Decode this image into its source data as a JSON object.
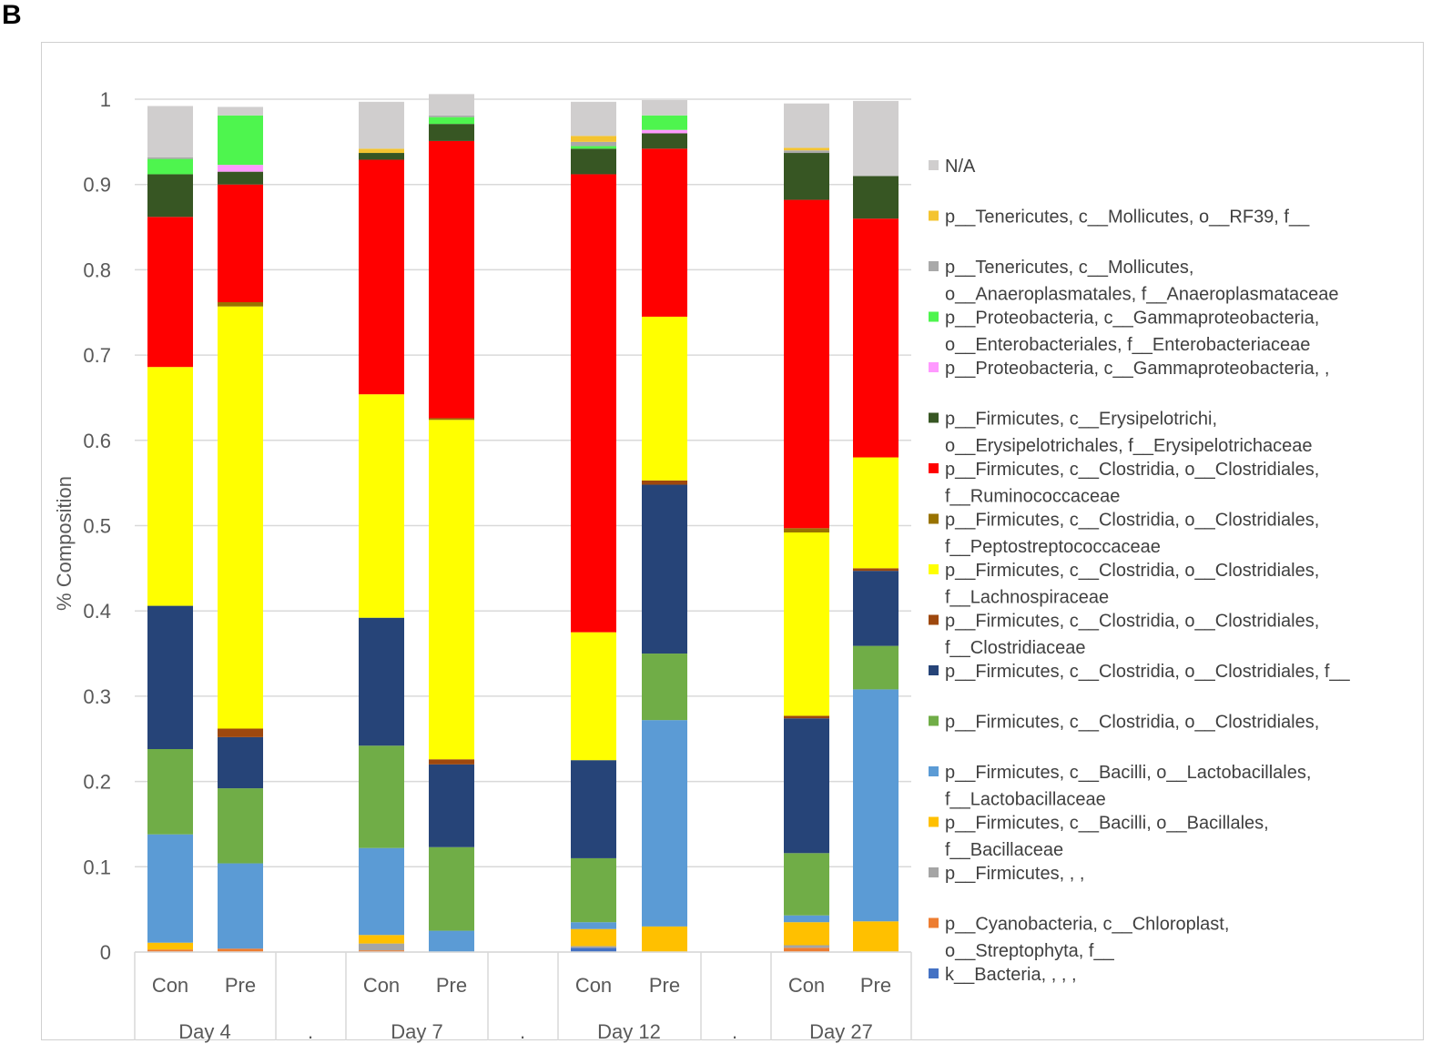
{
  "panel_label": "B",
  "chart_data": {
    "type": "bar",
    "stacked": true,
    "title": "",
    "xlabel": "",
    "ylabel": "% Composition",
    "ylim": [
      0,
      1
    ],
    "yticks": [
      "0",
      "0.1",
      "0.2",
      "0.3",
      "0.4",
      "0.5",
      "0.6",
      "0.7",
      "0.8",
      "0.9",
      "1"
    ],
    "grid": true,
    "legend_position": "right",
    "groups": [
      "Day 4",
      ".",
      "Day 7",
      ".",
      "Day 12",
      ".",
      "Day 27"
    ],
    "categories": [
      {
        "label": "Con",
        "group": "Day 4"
      },
      {
        "label": "Pre",
        "group": "Day 4"
      },
      {
        "label": "Con",
        "group": "Day 7"
      },
      {
        "label": "Pre",
        "group": "Day 7"
      },
      {
        "label": "Con",
        "group": "Day 12"
      },
      {
        "label": "Pre",
        "group": "Day 12"
      },
      {
        "label": "Con",
        "group": "Day 27"
      },
      {
        "label": "Pre",
        "group": "Day 27"
      }
    ],
    "series": [
      {
        "name": "k__Bacteria, , , ,",
        "color": "#4472c4",
        "values": [
          0.0,
          0.0,
          0.0,
          0.0,
          0.005,
          0.0,
          0.0,
          0.0
        ]
      },
      {
        "name": "p__Cyanobacteria, c__Chloroplast, o__Streptophyta, f__",
        "color": "#ed7d31",
        "values": [
          0.003,
          0.004,
          0.002,
          0.0,
          0.0,
          0.0,
          0.005,
          0.0
        ]
      },
      {
        "name": "p__Firmicutes, , ,",
        "color": "#a5a5a5",
        "values": [
          0.0,
          0.0,
          0.008,
          0.0,
          0.002,
          0.0,
          0.003,
          0.0
        ]
      },
      {
        "name": "p__Firmicutes, c__Bacilli, o__Bacillales, f__Bacillaceae",
        "color": "#ffc000",
        "values": [
          0.008,
          0.0,
          0.01,
          0.0,
          0.02,
          0.03,
          0.027,
          0.036
        ]
      },
      {
        "name": "p__Firmicutes, c__Bacilli, o__Lactobacillales, f__Lactobacillaceae",
        "color": "#5b9bd5",
        "values": [
          0.127,
          0.1,
          0.102,
          0.025,
          0.008,
          0.242,
          0.008,
          0.272
        ]
      },
      {
        "name": "p__Firmicutes, c__Clostridia, o__Clostridiales,",
        "color": "#70ad47",
        "values": [
          0.1,
          0.088,
          0.12,
          0.098,
          0.075,
          0.078,
          0.073,
          0.051
        ]
      },
      {
        "name": "p__Firmicutes, c__Clostridia, o__Clostridiales, f__",
        "color": "#264478",
        "values": [
          0.168,
          0.06,
          0.15,
          0.097,
          0.115,
          0.198,
          0.158,
          0.088
        ]
      },
      {
        "name": "p__Firmicutes, c__Clostridia, o__Clostridiales, f__Clostridiaceae",
        "color": "#9e480e",
        "values": [
          0.0,
          0.01,
          0.0,
          0.006,
          0.0,
          0.005,
          0.003,
          0.003
        ]
      },
      {
        "name": "p__Firmicutes, c__Clostridia, o__Clostridiales, f__Lachnospiraceae",
        "color": "#ffff00",
        "values": [
          0.28,
          0.495,
          0.262,
          0.398,
          0.15,
          0.192,
          0.215,
          0.13
        ]
      },
      {
        "name": "p__Firmicutes, c__Clostridia, o__Clostridiales, f__Peptostreptococcaceae",
        "color": "#997300",
        "values": [
          0.0,
          0.005,
          0.0,
          0.002,
          0.0,
          0.0,
          0.005,
          0.0
        ]
      },
      {
        "name": "p__Firmicutes, c__Clostridia, o__Clostridiales, f__Ruminococcaceae",
        "color": "#ff0000",
        "values": [
          0.176,
          0.138,
          0.275,
          0.325,
          0.537,
          0.197,
          0.385,
          0.28
        ]
      },
      {
        "name": "p__Firmicutes, c__Erysipelotrichi, o__Erysipelotrichales, f__Erysipelotrichaceae",
        "color": "#375623",
        "values": [
          0.05,
          0.015,
          0.008,
          0.02,
          0.03,
          0.018,
          0.055,
          0.05
        ]
      },
      {
        "name": "p__Proteobacteria, c__Gammaproteobacteria, ,",
        "color": "#ff99ff",
        "values": [
          0.0,
          0.008,
          0.0,
          0.0,
          0.0,
          0.004,
          0.0,
          0.0
        ]
      },
      {
        "name": "p__Proteobacteria, c__Gammaproteobacteria, o__Enterobacteriales, f__Enterobacteriaceae",
        "color": "#4ef54e",
        "values": [
          0.018,
          0.058,
          0.0,
          0.008,
          0.003,
          0.017,
          0.0,
          0.0
        ]
      },
      {
        "name": "p__Tenericutes, c__Mollicutes, o__Anaeroplasmatales, f__Anaeroplasmataceae",
        "color": "#a9a9a9",
        "values": [
          0.002,
          0.0,
          0.0,
          0.002,
          0.005,
          0.0,
          0.003,
          0.0
        ]
      },
      {
        "name": "p__Tenericutes, c__Mollicutes, o__RF39, f__",
        "color": "#f4c430",
        "values": [
          0.0,
          0.0,
          0.005,
          0.0,
          0.007,
          0.0,
          0.003,
          0.0
        ]
      },
      {
        "name": "N/A",
        "color": "#d0cece",
        "values": [
          0.06,
          0.01,
          0.055,
          0.025,
          0.04,
          0.018,
          0.052,
          0.088
        ]
      }
    ],
    "legend": [
      {
        "lines": [
          "N/A"
        ],
        "color": "#d0cece"
      },
      {
        "lines": [
          "p__Tenericutes, c__Mollicutes, o__RF39, f__"
        ],
        "color": "#f4c430"
      },
      {
        "lines": [
          "p__Tenericutes, c__Mollicutes,",
          "o__Anaeroplasmatales, f__Anaeroplasmataceae"
        ],
        "color": "#a9a9a9"
      },
      {
        "lines": [
          "p__Proteobacteria, c__Gammaproteobacteria,",
          "o__Enterobacteriales, f__Enterobacteriaceae"
        ],
        "color": "#4ef54e"
      },
      {
        "lines": [
          "p__Proteobacteria, c__Gammaproteobacteria, ,"
        ],
        "color": "#ff99ff"
      },
      {
        "lines": [
          "p__Firmicutes, c__Erysipelotrichi,",
          "o__Erysipelotrichales, f__Erysipelotrichaceae"
        ],
        "color": "#375623"
      },
      {
        "lines": [
          "p__Firmicutes, c__Clostridia, o__Clostridiales,",
          "f__Ruminococcaceae"
        ],
        "color": "#ff0000"
      },
      {
        "lines": [
          "p__Firmicutes, c__Clostridia, o__Clostridiales,",
          "f__Peptostreptococcaceae"
        ],
        "color": "#997300"
      },
      {
        "lines": [
          "p__Firmicutes, c__Clostridia, o__Clostridiales,",
          "f__Lachnospiraceae"
        ],
        "color": "#ffff00"
      },
      {
        "lines": [
          "p__Firmicutes, c__Clostridia, o__Clostridiales,",
          "f__Clostridiaceae"
        ],
        "color": "#9e480e"
      },
      {
        "lines": [
          "p__Firmicutes, c__Clostridia, o__Clostridiales, f__"
        ],
        "color": "#264478"
      },
      {
        "lines": [
          "p__Firmicutes, c__Clostridia, o__Clostridiales,"
        ],
        "color": "#70ad47"
      },
      {
        "lines": [
          "p__Firmicutes, c__Bacilli, o__Lactobacillales,",
          "f__Lactobacillaceae"
        ],
        "color": "#5b9bd5"
      },
      {
        "lines": [
          "p__Firmicutes, c__Bacilli, o__Bacillales,",
          "f__Bacillaceae"
        ],
        "color": "#ffc000"
      },
      {
        "lines": [
          "p__Firmicutes, , ,"
        ],
        "color": "#a5a5a5"
      },
      {
        "lines": [
          "p__Cyanobacteria, c__Chloroplast,",
          "o__Streptophyta, f__"
        ],
        "color": "#ed7d31"
      },
      {
        "lines": [
          "k__Bacteria, , , ,"
        ],
        "color": "#4472c4"
      }
    ]
  }
}
